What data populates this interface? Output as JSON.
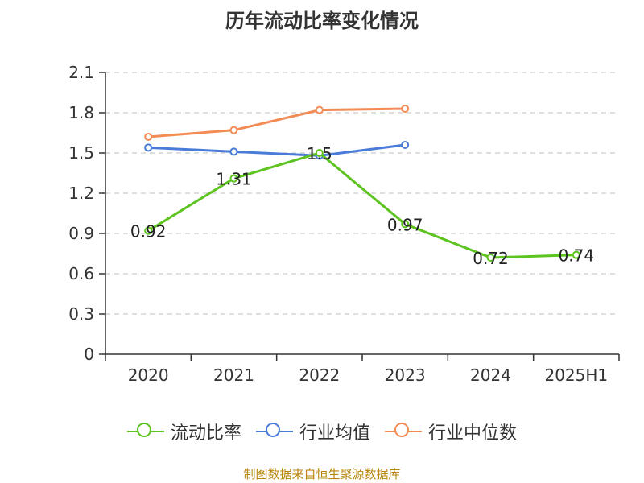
{
  "chart_data": {
    "type": "line",
    "title": "历年流动比率变化情况",
    "categories": [
      "2020",
      "2021",
      "2022",
      "2023",
      "2024",
      "2025H1"
    ],
    "ylim": [
      0,
      2.1
    ],
    "yticks": [
      "0",
      "0.3",
      "0.6",
      "0.9",
      "1.2",
      "1.5",
      "1.8",
      "2.1"
    ],
    "grid": true,
    "legend_position": "bottom",
    "series": [
      {
        "name": "流动比率",
        "color": "#5cc31f",
        "values": [
          0.92,
          1.31,
          1.5,
          0.97,
          0.72,
          0.74
        ],
        "labels": [
          "0.92",
          "1.31",
          "1.5",
          "0.97",
          "0.72",
          "0.74"
        ]
      },
      {
        "name": "行业均值",
        "color": "#4a7bd8",
        "values": [
          1.54,
          1.51,
          1.48,
          1.56,
          null,
          null
        ]
      },
      {
        "name": "行业中位数",
        "color": "#f28b54",
        "values": [
          1.62,
          1.67,
          1.82,
          1.83,
          null,
          null
        ]
      }
    ]
  },
  "source_note": "制图数据来自恒生聚源数据库"
}
